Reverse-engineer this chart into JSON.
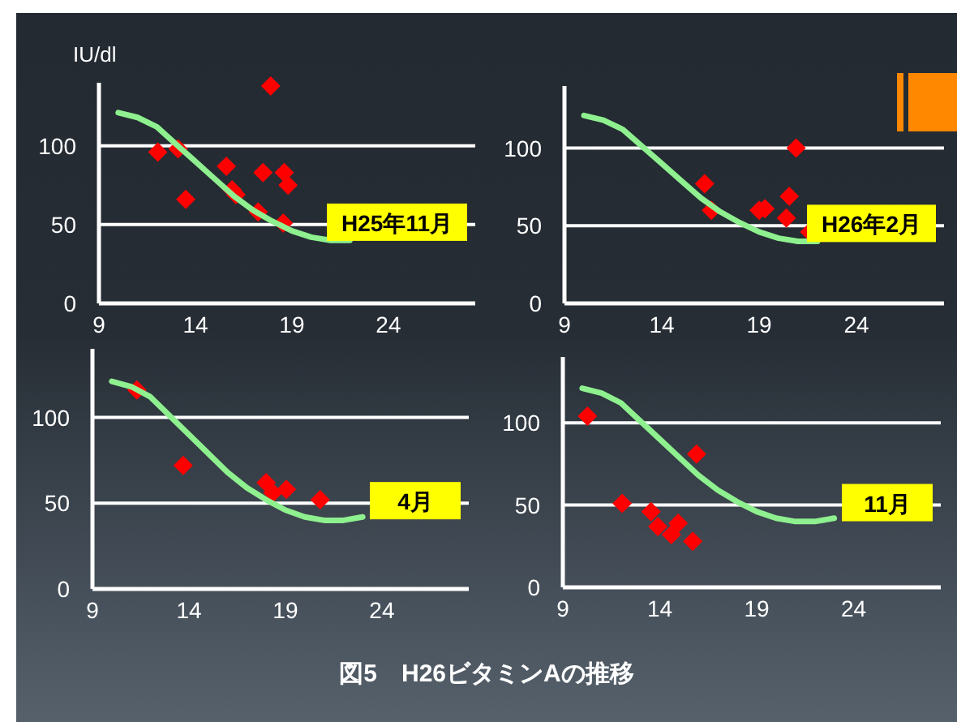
{
  "chart_data": [
    {
      "type": "scatter",
      "ylabel": "IU/dl",
      "xlim": [
        9,
        28.5
      ],
      "ylim": [
        0,
        140
      ],
      "xticks": [
        9,
        14,
        19,
        24
      ],
      "yticks": [
        0,
        50,
        100
      ],
      "grid": "y",
      "annotations": [
        "H25年11月"
      ],
      "series": [
        {
          "color": "#ff0000",
          "marker": "diamond",
          "x": [
            12.05,
            13.1,
            13.5,
            15.6,
            15.9,
            16.1,
            17.25,
            17.5,
            17.9,
            18.6,
            18.8,
            18.55
          ],
          "values": [
            96,
            98,
            66,
            87,
            72,
            69,
            58,
            83,
            138,
            83,
            75,
            51
          ]
        },
        {
          "type": "line",
          "color": "#8ef08e",
          "x": [
            10,
            11,
            12,
            13,
            14,
            15,
            16,
            17,
            18,
            19,
            20,
            21,
            22
          ],
          "values": [
            121,
            118,
            112,
            101,
            90,
            79,
            68,
            59,
            52,
            46,
            42,
            40,
            40
          ]
        }
      ]
    },
    {
      "type": "scatter",
      "xlim": [
        9,
        28.5
      ],
      "ylim": [
        0,
        140
      ],
      "xticks": [
        9,
        14,
        19,
        24
      ],
      "yticks": [
        0,
        50,
        100
      ],
      "grid": "y",
      "annotations": [
        "H26年2月"
      ],
      "series": [
        {
          "color": "#ff0000",
          "marker": "diamond",
          "x": [
            16.2,
            16.55,
            19,
            19.3,
            20.9,
            20.4,
            20.55,
            21.6
          ],
          "values": [
            77,
            60,
            60,
            61,
            100,
            55,
            69,
            46
          ]
        },
        {
          "type": "line",
          "color": "#8ef08e",
          "x": [
            10,
            11,
            12,
            13,
            14,
            15,
            16,
            17,
            18,
            19,
            20,
            21,
            22
          ],
          "values": [
            121,
            118,
            112,
            101,
            90,
            79,
            68,
            59,
            52,
            46,
            42,
            40,
            40
          ]
        }
      ]
    },
    {
      "type": "scatter",
      "xlim": [
        9,
        28.5
      ],
      "ylim": [
        0,
        140
      ],
      "xticks": [
        9,
        14,
        19,
        24
      ],
      "yticks": [
        0,
        50,
        100
      ],
      "grid": "y",
      "annotations": [
        "4月"
      ],
      "series": [
        {
          "color": "#ff0000",
          "marker": "diamond",
          "x": [
            11.3,
            13.7,
            18.0,
            18.35,
            19.05,
            20.8
          ],
          "values": [
            116,
            72,
            62,
            56,
            58,
            52
          ]
        },
        {
          "type": "line",
          "color": "#8ef08e",
          "x": [
            10,
            11,
            12,
            13,
            14,
            15,
            16,
            17,
            18,
            19,
            20,
            21,
            22,
            23
          ],
          "values": [
            121,
            118,
            112,
            101,
            90,
            79,
            68,
            59,
            52,
            46,
            42,
            40,
            40,
            42
          ]
        }
      ]
    },
    {
      "type": "scatter",
      "xlim": [
        9,
        28.5
      ],
      "ylim": [
        0,
        140
      ],
      "xticks": [
        9,
        14,
        19,
        24
      ],
      "yticks": [
        0,
        50,
        100
      ],
      "grid": "y",
      "annotations": [
        "11月",
        "図5　H26ビタミンAの推移"
      ],
      "series": [
        {
          "color": "#ff0000",
          "marker": "diamond",
          "x": [
            10.27,
            12.06,
            13.55,
            13.9,
            14.6,
            14.95,
            15.7,
            15.9
          ],
          "values": [
            104,
            51,
            46,
            37,
            32,
            39,
            28,
            81
          ]
        },
        {
          "type": "line",
          "color": "#8ef08e",
          "x": [
            10,
            11,
            12,
            13,
            14,
            15,
            16,
            17,
            18,
            19,
            20,
            21,
            22,
            23
          ],
          "values": [
            121,
            118,
            112,
            101,
            90,
            79,
            68,
            59,
            52,
            46,
            42,
            40,
            40,
            42
          ]
        }
      ]
    }
  ]
}
